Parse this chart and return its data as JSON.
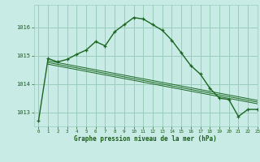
{
  "title": "Graphe pression niveau de la mer (hPa)",
  "background_color": "#c8ebe5",
  "grid_color": "#99ccbb",
  "line_color": "#1a6620",
  "text_color": "#1a5c1a",
  "xlim": [
    -0.5,
    23
  ],
  "ylim": [
    1012.5,
    1016.8
  ],
  "yticks": [
    1013,
    1014,
    1015,
    1016
  ],
  "xticks": [
    0,
    1,
    2,
    3,
    4,
    5,
    6,
    7,
    8,
    9,
    10,
    11,
    12,
    13,
    14,
    15,
    16,
    17,
    18,
    19,
    20,
    21,
    22,
    23
  ],
  "main_x": [
    0,
    1,
    2,
    3,
    4,
    5,
    6,
    7,
    8,
    9,
    10,
    11,
    12,
    13,
    14,
    15,
    16,
    17,
    18,
    19,
    20,
    21,
    22,
    23
  ],
  "main_y": [
    1012.7,
    1014.9,
    1014.78,
    1014.87,
    1015.05,
    1015.2,
    1015.5,
    1015.35,
    1015.85,
    1016.1,
    1016.35,
    1016.3,
    1016.1,
    1015.9,
    1015.55,
    1015.1,
    1014.65,
    1014.35,
    1013.85,
    1013.5,
    1013.45,
    1012.85,
    1013.1,
    1013.1
  ],
  "trend1_x": [
    1,
    23
  ],
  "trend1_y": [
    1014.82,
    1013.42
  ],
  "trend2_x": [
    1,
    23
  ],
  "trend2_y": [
    1014.76,
    1013.36
  ],
  "trend3_x": [
    1,
    23
  ],
  "trend3_y": [
    1014.7,
    1013.3
  ]
}
